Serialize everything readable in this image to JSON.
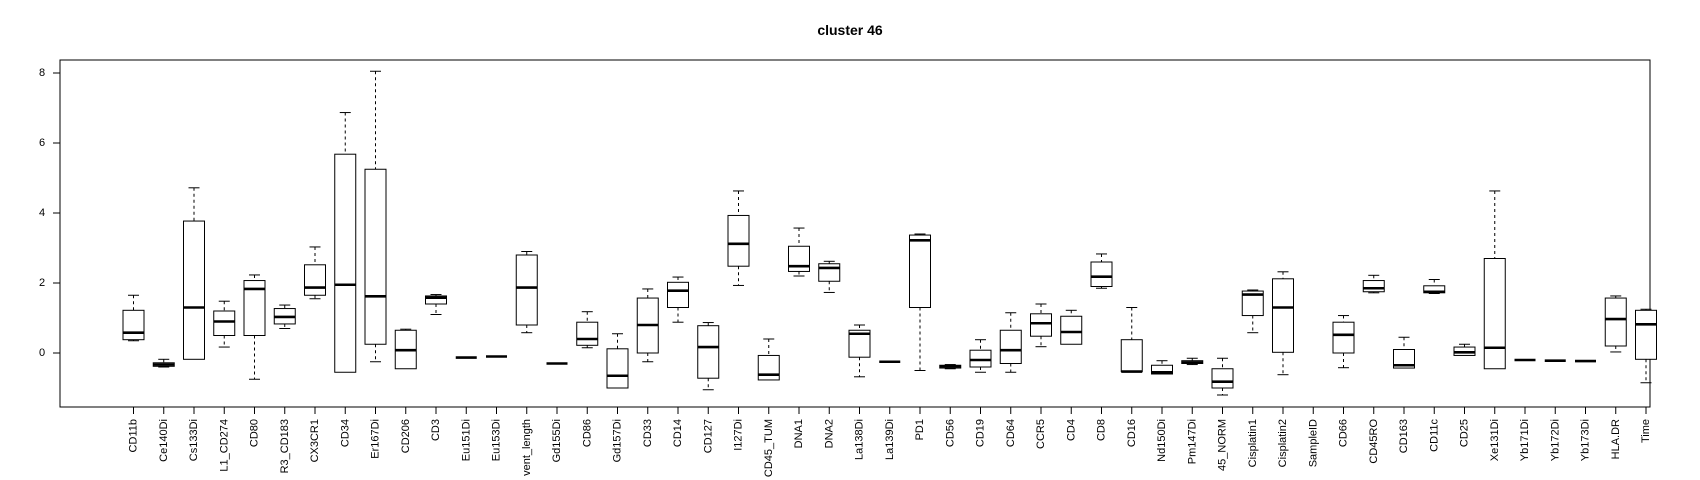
{
  "chart_data": {
    "type": "box",
    "title": "cluster 46",
    "xlabel": "",
    "ylabel": "",
    "ylim": [
      -1.6,
      8.3
    ],
    "yticks": [
      0,
      2,
      4,
      6,
      8
    ],
    "grid": false,
    "categories": [
      "CD11b",
      "Ce140Di",
      "Cs133Di",
      "L1_CD274",
      "CD80",
      "R3_CD183",
      "CX3CR1",
      "CD34",
      "Er167Di",
      "CD206",
      "CD3",
      "Eu151Di",
      "Eu153Di",
      "vent_length",
      "Gd155Di",
      "CD86",
      "Gd157Di",
      "CD33",
      "CD14",
      "CD127",
      "I127Di",
      "CD45_TUM",
      "DNA1",
      "DNA2",
      "La138Di",
      "La139Di",
      "PD1",
      "CD56",
      "CD19",
      "CD64",
      "CCR5",
      "CD4",
      "CD8",
      "CD16",
      "Nd150Di",
      "Pm147Di",
      "45_NORM",
      "Cisplatin1",
      "Cisplatin2",
      "SampleID",
      "CD66",
      "CD45RO",
      "CD163",
      "CD11c",
      "CD25",
      "Xe131Di",
      "Yb171Di",
      "Yb172Di",
      "Yb173Di",
      "HLA.DR",
      "Time"
    ],
    "boxes": [
      {
        "min": 0.35,
        "q1": 0.38,
        "median": 0.58,
        "q3": 1.22,
        "max": 1.65
      },
      {
        "min": -0.4,
        "q1": -0.38,
        "median": -0.33,
        "q3": -0.28,
        "max": -0.18
      },
      {
        "min": -0.18,
        "q1": -0.18,
        "median": 1.3,
        "q3": 3.77,
        "max": 4.72
      },
      {
        "min": 0.17,
        "q1": 0.5,
        "median": 0.9,
        "q3": 1.2,
        "max": 1.48
      },
      {
        "min": -0.75,
        "q1": 0.5,
        "median": 1.83,
        "q3": 2.07,
        "max": 2.23
      },
      {
        "min": 0.7,
        "q1": 0.83,
        "median": 1.03,
        "q3": 1.27,
        "max": 1.37
      },
      {
        "min": 1.55,
        "q1": 1.65,
        "median": 1.87,
        "q3": 2.52,
        "max": 3.03
      },
      {
        "min": -0.55,
        "q1": -0.55,
        "median": 1.95,
        "q3": 5.68,
        "max": 6.87
      },
      {
        "min": -0.25,
        "q1": 0.25,
        "median": 1.62,
        "q3": 5.25,
        "max": 8.05
      },
      {
        "min": -0.45,
        "q1": -0.45,
        "median": 0.08,
        "q3": 0.65,
        "max": 0.68
      },
      {
        "min": 1.1,
        "q1": 1.4,
        "median": 1.58,
        "q3": 1.63,
        "max": 1.67
      },
      {
        "min": -0.13,
        "q1": -0.13,
        "median": -0.13,
        "q3": -0.13,
        "max": -0.13
      },
      {
        "min": -0.1,
        "q1": -0.1,
        "median": -0.1,
        "q3": -0.1,
        "max": -0.1
      },
      {
        "min": 0.58,
        "q1": 0.8,
        "median": 1.87,
        "q3": 2.8,
        "max": 2.9
      },
      {
        "min": -0.3,
        "q1": -0.3,
        "median": -0.3,
        "q3": -0.3,
        "max": -0.3
      },
      {
        "min": 0.15,
        "q1": 0.22,
        "median": 0.4,
        "q3": 0.88,
        "max": 1.18
      },
      {
        "min": -1.0,
        "q1": -1.0,
        "median": -0.65,
        "q3": 0.12,
        "max": 0.55
      },
      {
        "min": -0.25,
        "q1": 0.0,
        "median": 0.8,
        "q3": 1.57,
        "max": 1.83
      },
      {
        "min": 0.88,
        "q1": 1.3,
        "median": 1.78,
        "q3": 2.02,
        "max": 2.17
      },
      {
        "min": -1.05,
        "q1": -0.72,
        "median": 0.17,
        "q3": 0.78,
        "max": 0.87
      },
      {
        "min": 1.93,
        "q1": 2.48,
        "median": 3.12,
        "q3": 3.93,
        "max": 4.63
      },
      {
        "min": -0.77,
        "q1": -0.77,
        "median": -0.62,
        "q3": -0.07,
        "max": 0.4
      },
      {
        "min": 2.2,
        "q1": 2.33,
        "median": 2.48,
        "q3": 3.05,
        "max": 3.57
      },
      {
        "min": 1.73,
        "q1": 2.05,
        "median": 2.43,
        "q3": 2.55,
        "max": 2.62
      },
      {
        "min": -0.68,
        "q1": -0.12,
        "median": 0.55,
        "q3": 0.65,
        "max": 0.8
      },
      {
        "min": -0.25,
        "q1": -0.25,
        "median": -0.25,
        "q3": -0.25,
        "max": -0.25
      },
      {
        "min": -0.5,
        "q1": 1.3,
        "median": 3.22,
        "q3": 3.37,
        "max": 3.4
      },
      {
        "min": -0.45,
        "q1": -0.43,
        "median": -0.38,
        "q3": -0.35,
        "max": -0.33
      },
      {
        "min": -0.55,
        "q1": -0.4,
        "median": -0.2,
        "q3": 0.08,
        "max": 0.38
      },
      {
        "min": -0.55,
        "q1": -0.3,
        "median": 0.08,
        "q3": 0.65,
        "max": 1.15
      },
      {
        "min": 0.18,
        "q1": 0.48,
        "median": 0.85,
        "q3": 1.12,
        "max": 1.4
      },
      {
        "min": 0.25,
        "q1": 0.25,
        "median": 0.6,
        "q3": 1.05,
        "max": 1.22
      },
      {
        "min": 1.85,
        "q1": 1.9,
        "median": 2.18,
        "q3": 2.6,
        "max": 2.83
      },
      {
        "min": -0.53,
        "q1": -0.53,
        "median": -0.53,
        "q3": 0.38,
        "max": 1.3
      },
      {
        "min": -0.6,
        "q1": -0.6,
        "median": -0.55,
        "q3": -0.35,
        "max": -0.22
      },
      {
        "min": -0.33,
        "q1": -0.3,
        "median": -0.27,
        "q3": -0.22,
        "max": -0.15
      },
      {
        "min": -1.2,
        "q1": -1.0,
        "median": -0.82,
        "q3": -0.45,
        "max": -0.15
      },
      {
        "min": 0.58,
        "q1": 1.07,
        "median": 1.67,
        "q3": 1.77,
        "max": 1.8
      },
      {
        "min": -0.62,
        "q1": 0.02,
        "median": 1.3,
        "q3": 2.12,
        "max": 2.32
      },
      {
        "min": null,
        "q1": null,
        "median": null,
        "q3": null,
        "max": null
      },
      {
        "min": -0.42,
        "q1": 0.0,
        "median": 0.52,
        "q3": 0.88,
        "max": 1.07
      },
      {
        "min": 1.72,
        "q1": 1.75,
        "median": 1.85,
        "q3": 2.07,
        "max": 2.22
      },
      {
        "min": -0.43,
        "q1": -0.43,
        "median": -0.35,
        "q3": 0.1,
        "max": 0.45
      },
      {
        "min": 1.7,
        "q1": 1.72,
        "median": 1.75,
        "q3": 1.92,
        "max": 2.1
      },
      {
        "min": -0.07,
        "q1": -0.07,
        "median": 0.02,
        "q3": 0.17,
        "max": 0.25
      },
      {
        "min": -0.45,
        "q1": -0.45,
        "median": 0.15,
        "q3": 2.7,
        "max": 4.63
      },
      {
        "min": -0.2,
        "q1": -0.2,
        "median": -0.2,
        "q3": -0.2,
        "max": -0.2
      },
      {
        "min": -0.22,
        "q1": -0.22,
        "median": -0.22,
        "q3": -0.22,
        "max": -0.22
      },
      {
        "min": -0.23,
        "q1": -0.23,
        "median": -0.23,
        "q3": -0.23,
        "max": -0.23
      },
      {
        "min": 0.03,
        "q1": 0.2,
        "median": 0.97,
        "q3": 1.57,
        "max": 1.63
      },
      {
        "min": -0.85,
        "q1": -0.18,
        "median": 0.82,
        "q3": 1.22,
        "max": 1.25
      }
    ]
  }
}
